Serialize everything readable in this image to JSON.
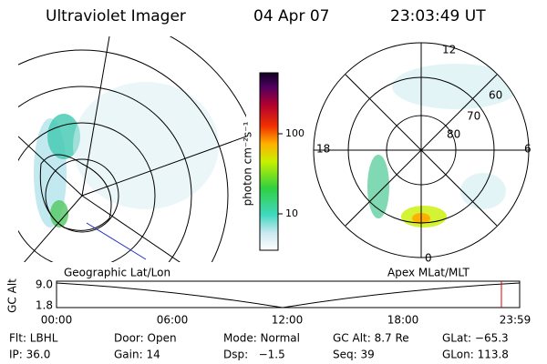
{
  "header": {
    "instrument": "Ultraviolet Imager",
    "date": "04 Apr 07",
    "time": "23:03:49 UT"
  },
  "colorbar": {
    "label": "photon cm⁻²s⁻¹",
    "ticks": [
      "100",
      "10"
    ]
  },
  "polar": {
    "mlt_labels": [
      "12",
      "18",
      "6",
      "0"
    ],
    "lat_labels": [
      "60",
      "70",
      "80"
    ]
  },
  "captions": {
    "left": "Geographic Lat/Lon",
    "right": "Apex  MLat/MLT"
  },
  "timeline": {
    "ylabel": "GC Alt",
    "yticks": [
      "9.0",
      "1.8"
    ],
    "xticks": [
      "00:00",
      "06:00",
      "12:00",
      "18:00",
      "23:59"
    ]
  },
  "footer": {
    "rows": [
      [
        "Flt: LBHL",
        "Door: Open",
        "Mode: Normal",
        "GC Alt: 8.7 Re",
        "GLat: −65.3"
      ],
      [
        "IP: 36.0",
        "Gain: 14",
        "Dsp:   −1.5",
        "Seq: 39",
        "GLon: 113.8"
      ]
    ]
  }
}
